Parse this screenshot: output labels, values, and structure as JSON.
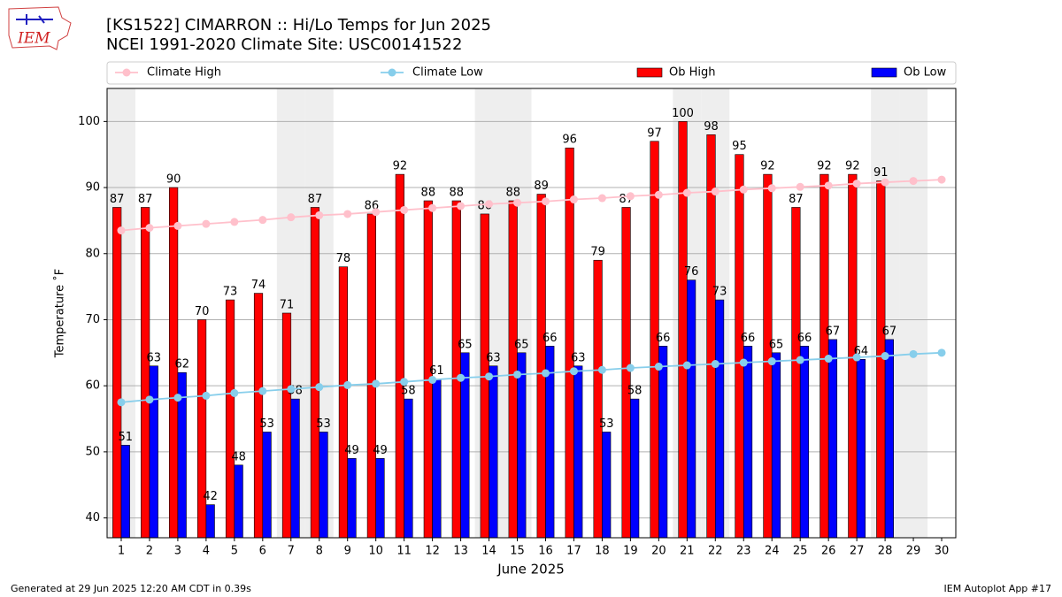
{
  "chart_data": {
    "type": "bar",
    "title": "[KS1522] CIMARRON :: Hi/Lo Temps for Jun 2025",
    "subtitle": "NCEI 1991-2020 Climate Site: USC00141522",
    "logo_text": "IEM",
    "xlabel": "June 2025",
    "ylabel": "Temperature ˚F",
    "footer_left": "Generated at 29 Jun 2025 12:20 AM CDT in 0.39s",
    "footer_right": "IEM Autoplot App #17",
    "x": [
      1,
      2,
      3,
      4,
      5,
      6,
      7,
      8,
      9,
      10,
      11,
      12,
      13,
      14,
      15,
      16,
      17,
      18,
      19,
      20,
      21,
      22,
      23,
      24,
      25,
      26,
      27,
      28,
      29,
      30
    ],
    "xlim": [
      0.5,
      30.5
    ],
    "xticks": [
      1,
      2,
      3,
      4,
      5,
      6,
      7,
      8,
      9,
      10,
      11,
      12,
      13,
      14,
      15,
      16,
      17,
      18,
      19,
      20,
      21,
      22,
      23,
      24,
      25,
      26,
      27,
      28,
      29,
      30
    ],
    "ylim": [
      37,
      105
    ],
    "yticks": [
      40,
      50,
      60,
      70,
      80,
      90,
      100
    ],
    "grid": true,
    "legend": "top",
    "highlight_days": [
      1,
      7,
      8,
      14,
      15,
      21,
      22,
      28,
      29
    ],
    "series": [
      {
        "name": "Climate High",
        "type": "line",
        "color": "#ffc0cb",
        "values": [
          83.5,
          83.9,
          84.2,
          84.5,
          84.8,
          85.1,
          85.5,
          85.8,
          86.0,
          86.3,
          86.6,
          86.9,
          87.2,
          87.5,
          87.7,
          87.9,
          88.2,
          88.4,
          88.7,
          88.9,
          89.2,
          89.4,
          89.7,
          89.9,
          90.1,
          90.3,
          90.6,
          90.8,
          91.0,
          91.2
        ]
      },
      {
        "name": "Climate Low",
        "type": "line",
        "color": "#87ceeb",
        "values": [
          57.5,
          57.9,
          58.2,
          58.5,
          58.9,
          59.2,
          59.5,
          59.8,
          60.1,
          60.3,
          60.6,
          60.9,
          61.2,
          61.4,
          61.7,
          61.9,
          62.2,
          62.4,
          62.7,
          62.9,
          63.1,
          63.3,
          63.5,
          63.7,
          63.9,
          64.1,
          64.3,
          64.5,
          64.8,
          65.0
        ]
      },
      {
        "name": "Ob High",
        "type": "bar",
        "color": "#ff0000",
        "values": [
          87,
          87,
          90,
          70,
          73,
          74,
          71,
          87,
          78,
          86,
          92,
          88,
          88,
          86,
          88,
          89,
          96,
          79,
          87,
          97,
          100,
          98,
          95,
          92,
          87,
          92,
          92,
          91,
          null,
          null
        ]
      },
      {
        "name": "Ob Low",
        "type": "bar",
        "color": "#0000ff",
        "values": [
          51,
          63,
          62,
          42,
          48,
          53,
          58,
          53,
          49,
          49,
          58,
          61,
          65,
          63,
          65,
          66,
          63,
          53,
          58,
          66,
          76,
          73,
          66,
          65,
          66,
          67,
          64,
          67,
          null,
          null
        ]
      }
    ]
  }
}
